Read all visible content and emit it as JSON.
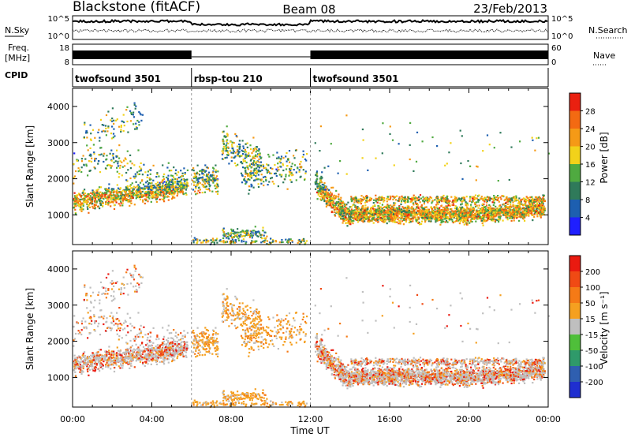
{
  "header": {
    "station": "Blackstone (fitACF)",
    "beam": "Beam 08",
    "date": "23/Feb/2013"
  },
  "noise_panel": {
    "left_label": "N.Sky",
    "right_label": "N.Search",
    "left_ticks": [
      "10^5",
      "10^0"
    ],
    "right_ticks": [
      "10^5",
      "10^0"
    ]
  },
  "freq_panel": {
    "left_label_1": "Freq.",
    "left_label_2": "[MHz]",
    "left_ticks": [
      "18",
      "8"
    ],
    "right_label": "Nave",
    "right_ticks": [
      "60",
      "0"
    ]
  },
  "cpid": {
    "label": "CPID",
    "segments": [
      {
        "name": "twofsound 3501",
        "start": 0,
        "end": 6
      },
      {
        "name": "rbsp-tou 210",
        "start": 6,
        "end": 12
      },
      {
        "name": "twofsound 3501",
        "start": 12,
        "end": 24
      }
    ]
  },
  "chart_data": [
    {
      "type": "heatmap",
      "quantity": "power",
      "ylabel": "Slant Range [km]",
      "ylim": [
        180,
        4500
      ],
      "yticks": [
        "1000",
        "2000",
        "3000",
        "4000"
      ],
      "xlim": [
        0,
        24
      ],
      "colorbar": {
        "label": "Power [dB]",
        "ticks": [
          "4",
          "8",
          "12",
          "16",
          "20",
          "24",
          "28"
        ],
        "colors": [
          "#1f1fff",
          "#1d5fb0",
          "#2f7a5a",
          "#4faa40",
          "#f2d21a",
          "#f59a16",
          "#f36a12",
          "#ea2010"
        ]
      }
    },
    {
      "type": "heatmap",
      "quantity": "velocity",
      "ylabel": "Slant Range [km]",
      "ylim": [
        180,
        4500
      ],
      "yticks": [
        "1000",
        "2000",
        "3000",
        "4000"
      ],
      "xlim": [
        0,
        24
      ],
      "xlabel": "Time UT",
      "xticks": [
        "00:00",
        "04:00",
        "08:00",
        "12:00",
        "16:00",
        "20:00",
        "00:00"
      ],
      "colorbar": {
        "label": "Velocity [m s⁻¹]",
        "ticks": [
          "200",
          "100",
          "50",
          "15",
          "-15",
          "-50",
          "-100",
          "-200"
        ],
        "colors": [
          "#1f2fd0",
          "#2f5fb0",
          "#2f9a6a",
          "#4fbf3a",
          "#bfbfbf",
          "#f5a020",
          "#f57a16",
          "#f04a14",
          "#ea1a10"
        ]
      }
    }
  ]
}
